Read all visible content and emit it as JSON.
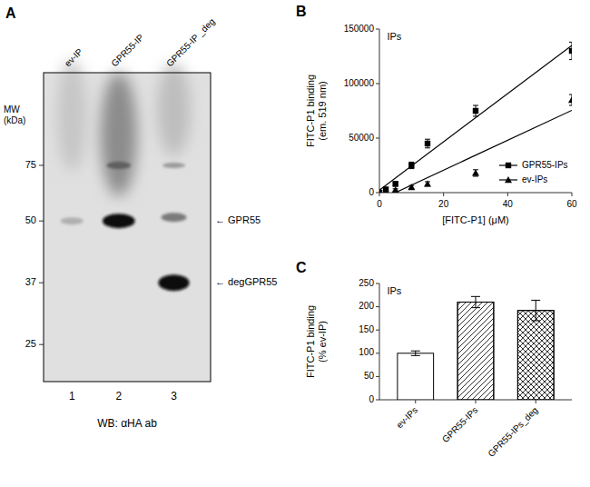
{
  "chart_data": [
    {
      "type": "blot",
      "title": "A",
      "mw_title": "MW\n(kDa)",
      "mw_labels": [
        "75",
        "50",
        "37",
        "25"
      ],
      "lane_labels": [
        "ev-IP",
        "GPR55-IP",
        "GPR55-IP _deg"
      ],
      "lane_numbers": [
        "1",
        "2",
        "3"
      ],
      "annotations": [
        "← GPR55",
        "← degGPR55"
      ],
      "bottom_label": "WB: αHA ab"
    },
    {
      "type": "scatter",
      "title": "B",
      "xlabel": "[FITC-P1] (μM)",
      "ylabel": "FITC-P1 binding\n(em. 519 nm)",
      "annotation": "IPs",
      "xlim": [
        0,
        60
      ],
      "ylim": [
        0,
        150000
      ],
      "xticks": [
        0,
        20,
        40,
        60
      ],
      "yticks": [
        0,
        50000,
        100000,
        150000
      ],
      "grid": false,
      "legend": "lower right",
      "series": [
        {
          "name": "GPR55-IPs",
          "color": "black",
          "marker": "square",
          "line_style": "solid",
          "x": [
            0,
            2,
            5,
            10,
            15,
            30,
            60
          ],
          "values": [
            0,
            3000,
            8000,
            25000,
            45000,
            75000,
            130000
          ],
          "errors": [
            500,
            1000,
            2000,
            3000,
            4000,
            5000,
            8000
          ],
          "fit": {
            "x": [
              0,
              60
            ],
            "y": [
              2287.73,
              135067.67
            ]
          }
        },
        {
          "name": "ev-IPs",
          "color": "black",
          "marker": "triangle",
          "line_style": "solid",
          "x": [
            0,
            2,
            5,
            10,
            15,
            30,
            60
          ],
          "values": [
            0,
            1000,
            2500,
            5000,
            8000,
            18000,
            85000
          ],
          "errors": [
            300,
            500,
            1000,
            1500,
            2000,
            3000,
            5000
          ],
          "fit": {
            "x": [
              0,
              60
            ],
            "y": [
              -6836.49,
              75469.47
            ]
          }
        }
      ]
    },
    {
      "type": "bar",
      "title": "C",
      "ylabel": "FITC-P1 binding\n(% ev-IP)",
      "annotation": "IPs",
      "categories": [
        "ev-IPs",
        "GPR55-IPs",
        "GPR55-IPs_deg"
      ],
      "values": [
        100,
        210,
        192
      ],
      "errors": [
        5,
        12,
        22
      ],
      "colors": [
        "#ffffff",
        "#ffffff",
        "#ffffff"
      ],
      "ylim": [
        0,
        250
      ],
      "yticks": [
        0,
        50,
        100,
        150,
        200,
        250
      ],
      "grid": false
    }
  ]
}
